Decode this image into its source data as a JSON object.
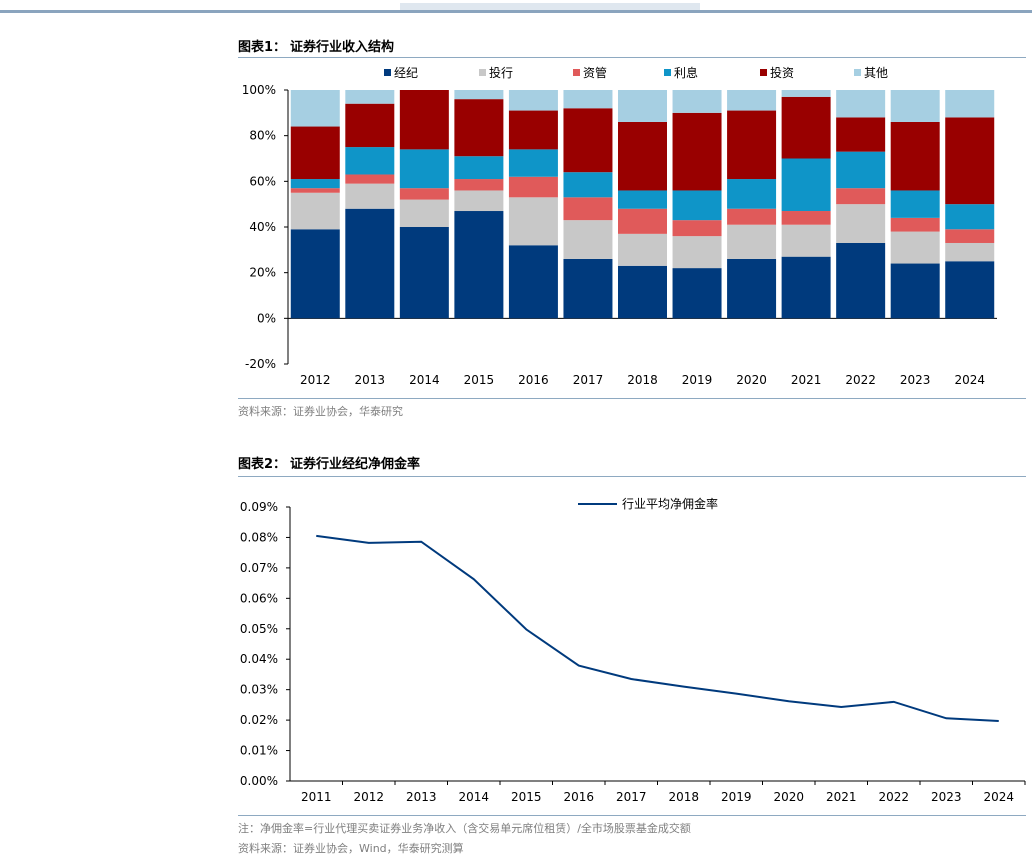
{
  "figure1": {
    "label": "图表1：",
    "title": "证券行业收入结构",
    "source": "资料来源：证券业协会，华泰研究",
    "chart_data": {
      "type": "bar",
      "stacked": true,
      "categories": [
        "2012",
        "2013",
        "2014",
        "2015",
        "2016",
        "2017",
        "2018",
        "2019",
        "2020",
        "2021",
        "2022",
        "2023",
        "2024"
      ],
      "series": [
        {
          "name": "经纪",
          "color": "#003a7d",
          "values": [
            39,
            48,
            40,
            47,
            32,
            26,
            23,
            22,
            26,
            27,
            33,
            24,
            25
          ]
        },
        {
          "name": "投行",
          "color": "#c8c8c8",
          "values": [
            16,
            11,
            12,
            9,
            21,
            17,
            14,
            14,
            15,
            14,
            17,
            14,
            8
          ]
        },
        {
          "name": "资管",
          "color": "#e05a5a",
          "values": [
            2,
            4,
            5,
            5,
            9,
            10,
            11,
            7,
            7,
            6,
            7,
            6,
            6
          ]
        },
        {
          "name": "利息",
          "color": "#0f95c8",
          "values": [
            4,
            12,
            17,
            10,
            12,
            11,
            8,
            13,
            13,
            23,
            16,
            12,
            11
          ]
        },
        {
          "name": "投资",
          "color": "#990000",
          "values": [
            23,
            19,
            26,
            25,
            17,
            28,
            30,
            34,
            30,
            27,
            15,
            30,
            38
          ]
        },
        {
          "name": "其他",
          "color": "#a6cfe2",
          "values": [
            16,
            6,
            0,
            4,
            9,
            8,
            14,
            10,
            9,
            3,
            12,
            14,
            12
          ]
        }
      ],
      "ylim": [
        -20,
        100
      ],
      "yticks": [
        "-20%",
        "0%",
        "20%",
        "40%",
        "60%",
        "80%",
        "100%"
      ],
      "ytick_values": [
        -20,
        0,
        20,
        40,
        60,
        80,
        100
      ],
      "legend": "top",
      "xlabel": "",
      "ylabel": ""
    }
  },
  "figure2": {
    "label": "图表2：",
    "title": "证券行业经纪净佣金率",
    "note": "注：净佣金率=行业代理买卖证券业务净收入（含交易单元席位租赁）/全市场股票基金成交额",
    "source": "资料来源：证券业协会，Wind，华泰研究测算",
    "chart_data": {
      "type": "line",
      "x": [
        "2011",
        "2012",
        "2013",
        "2014",
        "2015",
        "2016",
        "2017",
        "2018",
        "2019",
        "2020",
        "2021",
        "2022",
        "2023",
        "2024"
      ],
      "series": [
        {
          "name": "行业平均净佣金率",
          "color": "#003a7d",
          "values": [
            0.0805,
            0.0782,
            0.0786,
            0.0663,
            0.0498,
            0.0379,
            0.0335,
            0.031,
            0.0287,
            0.0262,
            0.0243,
            0.026,
            0.0206,
            0.0197
          ]
        }
      ],
      "ylim": [
        0,
        0.09
      ],
      "yticks": [
        "0.00%",
        "0.01%",
        "0.02%",
        "0.03%",
        "0.04%",
        "0.05%",
        "0.06%",
        "0.07%",
        "0.08%",
        "0.09%"
      ],
      "ytick_values": [
        0,
        0.01,
        0.02,
        0.03,
        0.04,
        0.05,
        0.06,
        0.07,
        0.08,
        0.09
      ],
      "legend": "top-center",
      "xlabel": "",
      "ylabel": ""
    }
  }
}
